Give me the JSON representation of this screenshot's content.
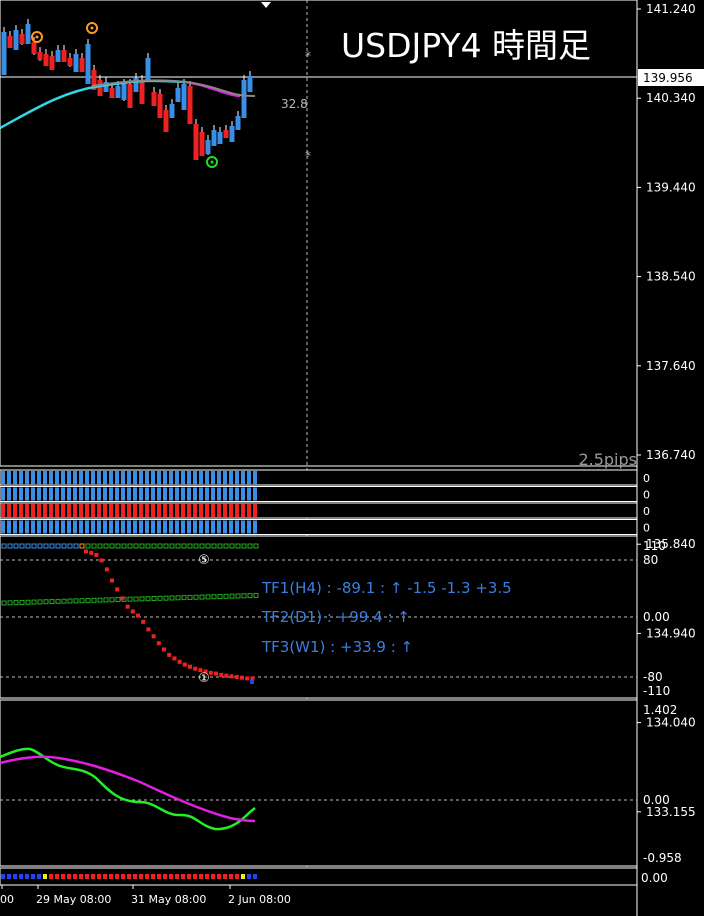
{
  "chart_title": "USDJPY4 時間足",
  "pip_label": "2.5pips",
  "price_axis": {
    "ticks": [
      "141.240",
      "140.340",
      "139.440",
      "138.540",
      "137.640",
      "136.740",
      "135.840",
      "134.940",
      "134.040",
      "133.155"
    ],
    "current_price": "139.956"
  },
  "annotations": {
    "star_value": "32.8",
    "circle_top": "⑤",
    "circle_bottom": "①"
  },
  "strength_bars": {
    "rows": [
      {
        "color": "#3a8ee6",
        "value": "0"
      },
      {
        "color": "#3a8ee6",
        "value": "0"
      },
      {
        "color": "#ee2222",
        "value": "0"
      },
      {
        "color": "#3a8ee6",
        "value": "0"
      }
    ]
  },
  "oscillator": {
    "axis_labels": [
      "110",
      "80",
      "0.00",
      "-80",
      "-110"
    ],
    "tf_lines": [
      "TF1(H4) : -89.1 : ↑  -1.5 -1.3 +3.5",
      "TF2(D1) : +99.4 : ↑",
      "TF3(W1) : +33.9 : ↑"
    ],
    "red_dots": [
      0.95,
      0.93,
      0.9,
      0.82,
      0.69,
      0.53,
      0.4,
      0.27,
      0.15,
      0.08,
      0.02,
      -0.07,
      -0.18,
      -0.28,
      -0.38,
      -0.47,
      -0.55,
      -0.6,
      -0.65,
      -0.69,
      -0.72,
      -0.75,
      -0.77,
      -0.79,
      -0.81,
      -0.82,
      -0.84,
      -0.85,
      -0.86,
      -0.87,
      -0.88,
      -0.89,
      -0.89
    ]
  },
  "macd_panel": {
    "axis_labels": [
      "1.402",
      "0.00",
      "-0.958"
    ]
  },
  "bottom_strip": {
    "value": "0.00"
  },
  "time_axis": {
    "labels": [
      "00",
      "29 May 08:00",
      "31 May 08:00",
      "2 Jun 08:00"
    ]
  },
  "colors": {
    "up_candle": "#3a8ee6",
    "down_candle": "#ee2222",
    "ma_cyan": "#33d6e6",
    "ma_magenta": "#e020e0",
    "osc_green": "#22cc22",
    "signal_lime": "#44ee22"
  }
}
